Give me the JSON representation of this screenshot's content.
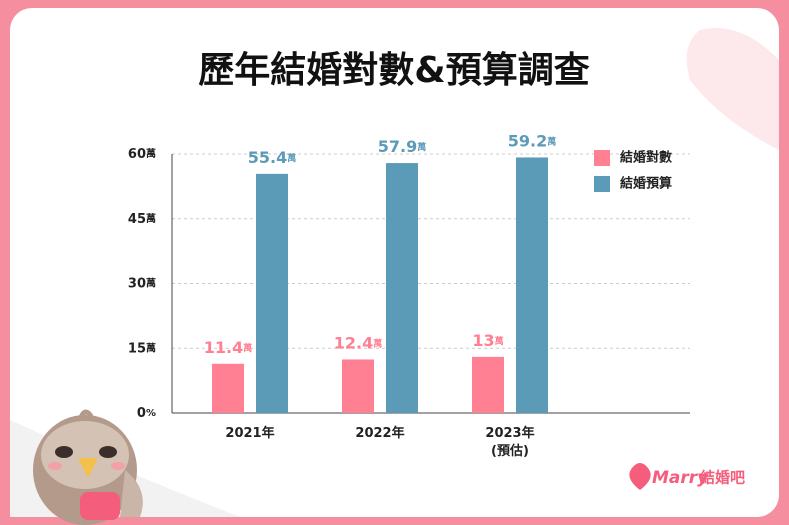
{
  "chart_data": {
    "type": "bar",
    "title": "歷年結婚對數&預算調查",
    "categories": [
      "2021年",
      "2022年",
      "2023年\n(預估)"
    ],
    "series": [
      {
        "name": "結婚對數",
        "color": "#ff7f93",
        "values": [
          11.4,
          12.4,
          13
        ],
        "value_labels": [
          "11.4萬",
          "12.4萬",
          "13萬"
        ]
      },
      {
        "name": "結婚預算",
        "color": "#5c9bb8",
        "values": [
          55.4,
          57.9,
          59.2
        ],
        "value_labels": [
          "55.4萬",
          "57.9萬",
          "59.2萬"
        ]
      }
    ],
    "ylim": [
      0,
      60
    ],
    "yticks": [
      {
        "value": 0,
        "label": "0%"
      },
      {
        "value": 15,
        "label": "15萬"
      },
      {
        "value": 30,
        "label": "30萬"
      },
      {
        "value": 45,
        "label": "45萬"
      },
      {
        "value": 60,
        "label": "60萬"
      }
    ],
    "grid": true,
    "legend": "top-right"
  },
  "logo": {
    "brand": "Marry",
    "name": "結婚吧"
  }
}
